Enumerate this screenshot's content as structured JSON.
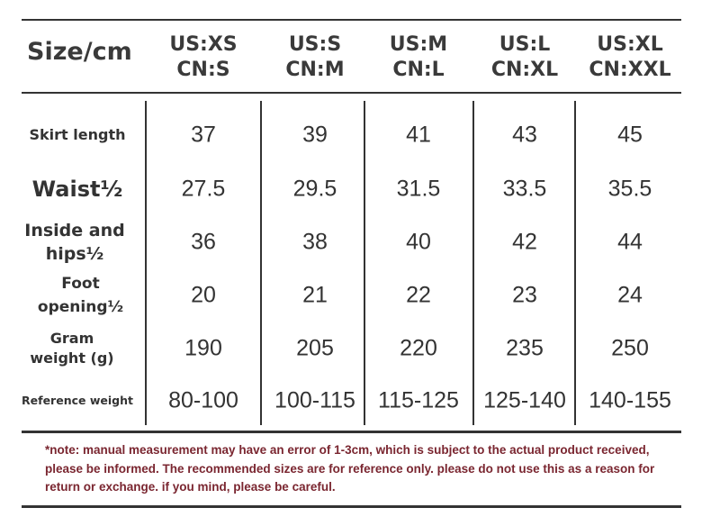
{
  "table": {
    "title": "Size/cm",
    "columns": [
      {
        "us": "US:XS",
        "cn": "CN:S"
      },
      {
        "us": "US:S",
        "cn": "CN:M"
      },
      {
        "us": "US:M",
        "cn": "CN:L"
      },
      {
        "us": "US:L",
        "cn": "CN:XL"
      },
      {
        "us": "US:XL",
        "cn": "CN:XXL"
      }
    ],
    "rows": [
      {
        "label": "Skirt length",
        "values": [
          "37",
          "39",
          "41",
          "43",
          "45"
        ]
      },
      {
        "label": "Waist½",
        "values": [
          "27.5",
          "29.5",
          "31.5",
          "33.5",
          "35.5"
        ]
      },
      {
        "label": "Inside and hips½",
        "values": [
          "36",
          "38",
          "40",
          "42",
          "44"
        ]
      },
      {
        "label": "Foot opening½",
        "values": [
          "20",
          "21",
          "22",
          "23",
          "24"
        ]
      },
      {
        "label": "Gram weight (g)",
        "values": [
          "190",
          "205",
          "220",
          "235",
          "250"
        ]
      },
      {
        "label": "Reference weight",
        "values": [
          "80-100",
          "100-115",
          "115-125",
          "125-140",
          "140-155"
        ]
      }
    ]
  },
  "note": "*note: manual measurement may have an error of 1-3cm, which is subject to the actual product received, please be informed.   The recommended sizes are for reference only. please do not use this as a reason for return or exchange. if you mind, please be careful.",
  "colors": {
    "text": "#333333",
    "note": "#7a2630"
  }
}
